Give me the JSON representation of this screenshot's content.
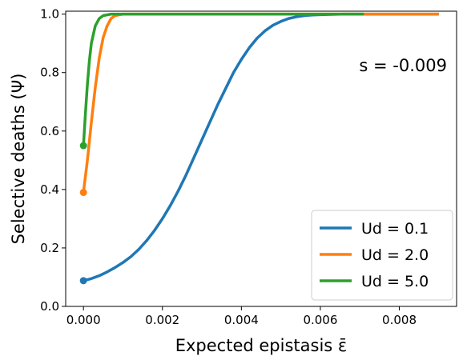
{
  "chart_data": {
    "type": "line",
    "title": "",
    "xlabel": "Expected epistasis ε̄",
    "ylabel": "Selective deaths (Ψ)",
    "annotation": "s = -0.009",
    "xlim": [
      -0.00045,
      0.00945
    ],
    "ylim": [
      0.0,
      1.01
    ],
    "xticks": [
      0.0,
      0.002,
      0.004,
      0.006,
      0.008
    ],
    "xtick_labels": [
      "0.000",
      "0.002",
      "0.004",
      "0.006",
      "0.008"
    ],
    "yticks": [
      0.0,
      0.2,
      0.4,
      0.6,
      0.8,
      1.0
    ],
    "ytick_labels": [
      "0.0",
      "0.2",
      "0.4",
      "0.6",
      "0.8",
      "1.0"
    ],
    "grid": false,
    "legend_position": "bottom-right",
    "series": [
      {
        "name": "Ud = 0.1",
        "color": "#1f77b4",
        "x": [
          0,
          0.0002,
          0.0004,
          0.0006,
          0.0008,
          0.001,
          0.0012,
          0.0014,
          0.0016,
          0.0018,
          0.002,
          0.0022,
          0.0024,
          0.0026,
          0.0028,
          0.003,
          0.0032,
          0.0034,
          0.0036,
          0.0038,
          0.004,
          0.0042,
          0.0044,
          0.0046,
          0.0048,
          0.005,
          0.0052,
          0.0054,
          0.0056,
          0.0058,
          0.006,
          0.0063,
          0.0066,
          0.007,
          0.008,
          0.009
        ],
        "y": [
          0.088,
          0.095,
          0.105,
          0.118,
          0.133,
          0.15,
          0.17,
          0.195,
          0.225,
          0.26,
          0.3,
          0.345,
          0.395,
          0.45,
          0.51,
          0.57,
          0.63,
          0.69,
          0.745,
          0.8,
          0.845,
          0.885,
          0.918,
          0.943,
          0.962,
          0.975,
          0.985,
          0.991,
          0.995,
          0.997,
          0.998,
          0.999,
          1.0,
          1.0,
          1.0,
          1.0
        ],
        "start_marker": true
      },
      {
        "name": "Ud = 2.0",
        "color": "#ff7f0e",
        "x": [
          0,
          0.0001,
          0.0002,
          0.0003,
          0.0004,
          0.0005,
          0.0006,
          0.0007,
          0.0008,
          0.001,
          0.002,
          0.004,
          0.006,
          0.009
        ],
        "y": [
          0.39,
          0.5,
          0.63,
          0.75,
          0.85,
          0.92,
          0.96,
          0.985,
          0.995,
          1.0,
          1.0,
          1.0,
          1.0,
          1.0
        ],
        "start_marker": true
      },
      {
        "name": "Ud = 5.0",
        "color": "#2ca02c",
        "x": [
          0,
          5e-05,
          0.0001,
          0.00015,
          0.0002,
          0.0003,
          0.0004,
          0.0005,
          0.0007,
          0.001,
          0.002,
          0.004,
          0.006,
          0.0071
        ],
        "y": [
          0.55,
          0.66,
          0.76,
          0.84,
          0.9,
          0.96,
          0.985,
          0.995,
          1.0,
          1.0,
          1.0,
          1.0,
          1.0,
          1.0
        ],
        "start_marker": true
      }
    ]
  }
}
